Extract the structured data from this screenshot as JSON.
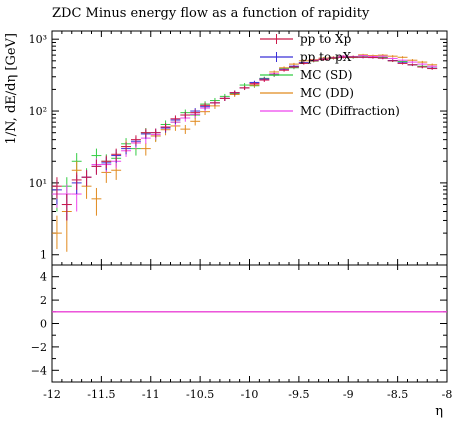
{
  "chart_data": {
    "type": "scatter",
    "title": "ZDC Minus energy flow as a function of rapidity",
    "xlabel": "η",
    "ylabel": "1/N, dE/dη [GeV]",
    "xlim": [
      -12,
      -8
    ],
    "ylim": [
      1,
      1000
    ],
    "yscale": "log",
    "ratio_ylim": [
      -5,
      5
    ],
    "x_ticks": [
      "-12",
      "-11.5",
      "-11",
      "-10.5",
      "-10",
      "-9.5",
      "-9",
      "-8.5",
      "-8"
    ],
    "y_ticks": [
      {
        "value": 1,
        "label": "1"
      },
      {
        "value": 10,
        "label": "10¹"
      },
      {
        "value": 100,
        "label": "10²"
      },
      {
        "value": 1000,
        "label": "10³"
      }
    ],
    "ratio_ticks": [
      {
        "value": 4,
        "label": "4"
      },
      {
        "value": 2,
        "label": "2"
      },
      {
        "value": 0,
        "label": "0"
      },
      {
        "value": -2,
        "label": "−2"
      },
      {
        "value": -4,
        "label": "−4"
      }
    ],
    "legend_position": "top-right",
    "x": [
      -11.95,
      -11.85,
      -11.75,
      -11.65,
      -11.55,
      -11.45,
      -11.35,
      -11.25,
      -11.15,
      -11.05,
      -10.95,
      -10.85,
      -10.75,
      -10.65,
      -10.55,
      -10.45,
      -10.35,
      -10.25,
      -10.15,
      -10.05,
      -9.95,
      -9.85,
      -9.75,
      -9.65,
      -9.55,
      -9.45,
      -9.35,
      -9.25,
      -9.15,
      -9.05,
      -8.95,
      -8.85,
      -8.75,
      -8.65,
      -8.55,
      -8.45,
      -8.35,
      -8.25,
      -8.15
    ],
    "series": [
      {
        "name": "pp to Xp",
        "color": "#cc1a4a",
        "values": [
          9,
          5,
          11,
          12,
          17,
          20,
          25,
          32,
          40,
          50,
          50,
          60,
          78,
          88,
          95,
          120,
          130,
          150,
          180,
          210,
          240,
          270,
          320,
          370,
          410,
          460,
          500,
          520,
          545,
          560,
          560,
          560,
          555,
          545,
          500,
          460,
          440,
          410,
          390
        ],
        "err_lo": [
          3,
          2,
          3,
          3,
          4,
          4,
          5,
          5,
          6,
          7,
          7,
          8,
          9,
          9,
          10,
          11,
          11,
          12,
          13,
          13,
          14,
          15,
          16,
          17,
          17,
          18,
          18,
          18,
          18,
          18,
          18,
          18,
          18,
          18,
          17,
          16,
          16,
          16,
          15
        ],
        "err_hi": [
          3,
          2,
          3,
          3,
          4,
          4,
          5,
          5,
          6,
          7,
          7,
          8,
          9,
          9,
          10,
          11,
          11,
          12,
          13,
          13,
          14,
          15,
          16,
          17,
          17,
          18,
          18,
          18,
          18,
          18,
          18,
          18,
          18,
          18,
          17,
          16,
          16,
          16,
          15
        ]
      },
      {
        "name": "pp to pX",
        "color": "#3b31d6",
        "values": [
          8,
          5,
          10,
          12,
          17,
          19,
          24,
          30,
          38,
          48,
          50,
          58,
          75,
          88,
          100,
          115,
          130,
          150,
          180,
          210,
          250,
          280,
          320,
          375,
          420,
          470,
          505,
          525,
          550,
          560,
          565,
          560,
          555,
          545,
          505,
          470,
          440,
          410,
          395
        ],
        "err_lo": [
          3,
          2,
          3,
          3,
          4,
          4,
          5,
          5,
          6,
          7,
          7,
          8,
          9,
          9,
          10,
          11,
          11,
          12,
          13,
          13,
          14,
          15,
          16,
          17,
          17,
          18,
          18,
          18,
          18,
          18,
          18,
          18,
          18,
          18,
          17,
          16,
          16,
          16,
          15
        ],
        "err_hi": [
          3,
          2,
          3,
          3,
          4,
          4,
          5,
          5,
          6,
          7,
          7,
          8,
          9,
          9,
          10,
          11,
          11,
          12,
          13,
          13,
          14,
          15,
          16,
          17,
          17,
          18,
          18,
          18,
          18,
          18,
          18,
          18,
          18,
          18,
          17,
          16,
          16,
          16,
          15
        ]
      },
      {
        "name": "MC (SD)",
        "color": "#33cc44",
        "values": [
          7,
          9,
          20,
          12,
          24,
          20,
          22,
          35,
          30,
          50,
          45,
          65,
          70,
          95,
          88,
          125,
          140,
          160,
          175,
          230,
          225,
          285,
          315,
          390,
          400,
          470,
          495,
          540,
          540,
          575,
          555,
          570,
          560,
          560,
          500,
          490,
          440,
          420,
          395
        ],
        "err_lo": [
          3,
          3,
          6,
          4,
          6,
          5,
          5,
          7,
          6,
          8,
          7,
          9,
          9,
          10,
          10,
          12,
          12,
          13,
          13,
          15,
          14,
          16,
          16,
          18,
          18,
          19,
          19,
          20,
          20,
          20,
          20,
          20,
          20,
          20,
          19,
          19,
          18,
          18,
          17
        ],
        "err_hi": [
          3,
          3,
          6,
          4,
          6,
          5,
          5,
          7,
          6,
          8,
          7,
          9,
          9,
          10,
          10,
          12,
          12,
          13,
          13,
          15,
          14,
          16,
          16,
          18,
          18,
          19,
          19,
          20,
          20,
          20,
          20,
          20,
          20,
          20,
          19,
          19,
          18,
          18,
          17
        ]
      },
      {
        "name": "MC (DD)",
        "color": "#e08a1e",
        "values": [
          2,
          4,
          15,
          9,
          6,
          14,
          15,
          32,
          36,
          30,
          45,
          55,
          62,
          56,
          72,
          98,
          118,
          150,
          170,
          210,
          230,
          280,
          350,
          400,
          450,
          500,
          520,
          545,
          560,
          580,
          575,
          605,
          590,
          600,
          580,
          560,
          510,
          480,
          440
        ],
        "err_lo": [
          0.8,
          2.9,
          5,
          3,
          2.5,
          4,
          4,
          7,
          7,
          6,
          8,
          9,
          9,
          8,
          9,
          10,
          11,
          12,
          13,
          14,
          15,
          16,
          17,
          18,
          18,
          19,
          19,
          20,
          20,
          20,
          20,
          20,
          20,
          20,
          20,
          20,
          19,
          19,
          18
        ],
        "err_hi": [
          1.5,
          3,
          5,
          3,
          2.5,
          4,
          4,
          7,
          7,
          6,
          8,
          9,
          9,
          8,
          9,
          10,
          11,
          12,
          13,
          14,
          15,
          16,
          17,
          18,
          18,
          19,
          19,
          20,
          20,
          20,
          20,
          20,
          20,
          20,
          20,
          20,
          19,
          19,
          18
        ]
      },
      {
        "name": "MC (Diffraction)",
        "color": "#ee44ee",
        "values": [
          7,
          7,
          7,
          12,
          18,
          18,
          20,
          28,
          36,
          42,
          47,
          60,
          70,
          80,
          90,
          110,
          130,
          150,
          180,
          210,
          240,
          270,
          330,
          380,
          420,
          470,
          510,
          530,
          550,
          580,
          570,
          590,
          575,
          580,
          540,
          510,
          480,
          450,
          420
        ],
        "err_lo": [
          2.5,
          2.5,
          3,
          3,
          4,
          4,
          4,
          5,
          6,
          7,
          7,
          8,
          9,
          9,
          10,
          11,
          11,
          12,
          13,
          13,
          14,
          15,
          16,
          17,
          17,
          18,
          18,
          18,
          18,
          18,
          18,
          18,
          18,
          18,
          17,
          16,
          16,
          16,
          15
        ],
        "err_hi": [
          2.5,
          2.5,
          3,
          3,
          4,
          4,
          4,
          5,
          6,
          7,
          7,
          8,
          9,
          9,
          10,
          11,
          11,
          12,
          13,
          13,
          14,
          15,
          16,
          17,
          17,
          18,
          18,
          18,
          18,
          18,
          18,
          18,
          18,
          18,
          17,
          16,
          16,
          16,
          15
        ]
      }
    ],
    "ratio_lines": [
      {
        "name": "pp to Xp",
        "color": "#cc1a4a",
        "value": 1
      },
      {
        "name": "MC (Diffraction)",
        "color": "#ee44ee",
        "value": 1
      }
    ]
  }
}
